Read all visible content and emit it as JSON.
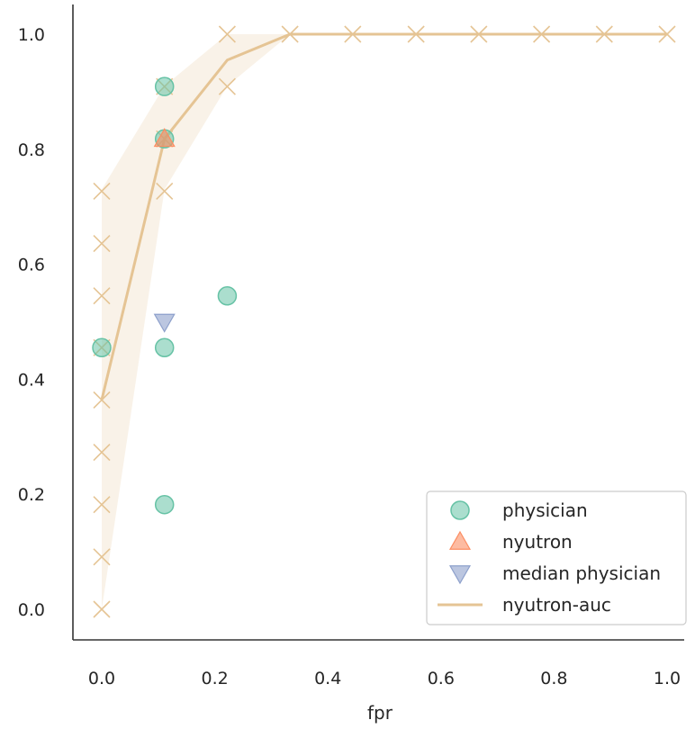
{
  "chart_data": {
    "type": "scatter",
    "title": "",
    "xlabel": "fpr",
    "ylabel": "",
    "xlim": [
      -0.05,
      1.03
    ],
    "ylim": [
      -0.05,
      1.05
    ],
    "xticks": [
      "0.0",
      "0.2",
      "0.4",
      "0.6",
      "0.8",
      "1.0"
    ],
    "yticks": [
      "0.0",
      "0.2",
      "0.4",
      "0.6",
      "0.8",
      "1.0"
    ],
    "grid": false,
    "legend_position": "lower-right",
    "series": [
      {
        "name": "physician",
        "kind": "scatter",
        "marker": "circle",
        "color": "#66c2a5",
        "points": [
          {
            "x": 0.0,
            "y": 0.455
          },
          {
            "x": 0.111,
            "y": 0.909
          },
          {
            "x": 0.111,
            "y": 0.818
          },
          {
            "x": 0.111,
            "y": 0.455
          },
          {
            "x": 0.111,
            "y": 0.182
          },
          {
            "x": 0.222,
            "y": 0.545
          }
        ]
      },
      {
        "name": "nyutron",
        "kind": "scatter",
        "marker": "triangle-up",
        "color": "#fc8d62",
        "points": [
          {
            "x": 0.111,
            "y": 0.818
          }
        ]
      },
      {
        "name": "median physician",
        "kind": "scatter",
        "marker": "triangle-down",
        "color": "#8da0cb",
        "points": [
          {
            "x": 0.111,
            "y": 0.5
          }
        ]
      },
      {
        "name": "nyutron-auc",
        "kind": "line",
        "color": "#e5c494",
        "points": [
          {
            "x": 0.0,
            "y": 0.364
          },
          {
            "x": 0.111,
            "y": 0.818
          },
          {
            "x": 0.222,
            "y": 0.955
          },
          {
            "x": 0.333,
            "y": 1.0
          },
          {
            "x": 0.444,
            "y": 1.0
          },
          {
            "x": 0.556,
            "y": 1.0
          },
          {
            "x": 0.667,
            "y": 1.0
          },
          {
            "x": 0.778,
            "y": 1.0
          },
          {
            "x": 0.889,
            "y": 1.0
          },
          {
            "x": 1.0,
            "y": 1.0
          }
        ],
        "band": {
          "x": [
            0.0,
            0.111,
            0.222,
            0.333,
            0.444,
            0.556,
            0.667,
            0.778,
            0.889,
            1.0
          ],
          "upper": [
            0.73,
            0.91,
            1.0,
            1.0,
            1.0,
            1.0,
            1.0,
            1.0,
            1.0,
            1.0
          ],
          "lower": [
            0.0,
            0.73,
            0.91,
            1.0,
            1.0,
            1.0,
            1.0,
            1.0,
            1.0,
            1.0
          ]
        },
        "raw_points": [
          {
            "x": 0.0,
            "y": 0.0
          },
          {
            "x": 0.0,
            "y": 0.091
          },
          {
            "x": 0.0,
            "y": 0.182
          },
          {
            "x": 0.0,
            "y": 0.273
          },
          {
            "x": 0.0,
            "y": 0.364
          },
          {
            "x": 0.0,
            "y": 0.455
          },
          {
            "x": 0.0,
            "y": 0.545
          },
          {
            "x": 0.0,
            "y": 0.636
          },
          {
            "x": 0.0,
            "y": 0.727
          },
          {
            "x": 0.111,
            "y": 0.727
          },
          {
            "x": 0.111,
            "y": 0.818
          },
          {
            "x": 0.111,
            "y": 0.909
          },
          {
            "x": 0.222,
            "y": 0.909
          },
          {
            "x": 0.222,
            "y": 1.0
          },
          {
            "x": 0.333,
            "y": 1.0
          },
          {
            "x": 0.444,
            "y": 1.0
          },
          {
            "x": 0.556,
            "y": 1.0
          },
          {
            "x": 0.667,
            "y": 1.0
          },
          {
            "x": 0.778,
            "y": 1.0
          },
          {
            "x": 0.889,
            "y": 1.0
          },
          {
            "x": 1.0,
            "y": 1.0
          }
        ]
      }
    ]
  }
}
